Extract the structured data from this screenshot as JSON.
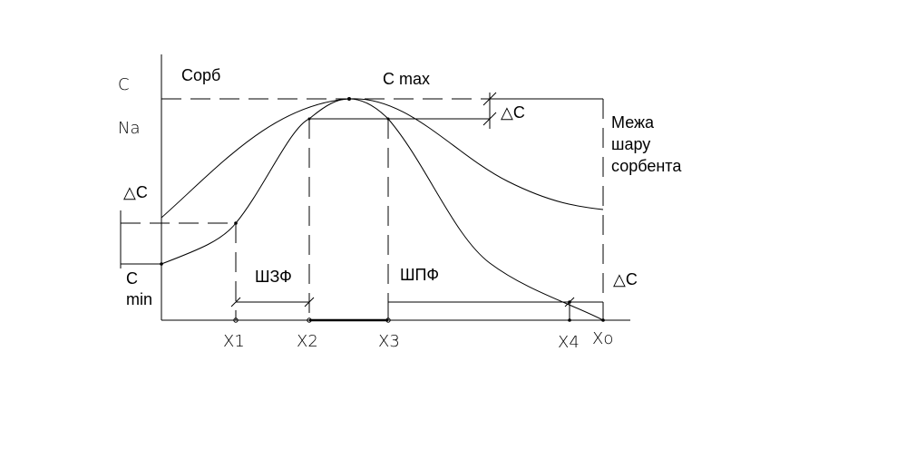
{
  "labels": {
    "c": "C",
    "na": "Na",
    "sorb": "Сорб",
    "c_max": "C max",
    "delta_c_top": "△C",
    "delta_c_left": "△C",
    "delta_c_right": "△C",
    "c_min": [
      "C",
      "min"
    ],
    "boundary": [
      "Межа",
      "шару",
      "сорбента"
    ],
    "shzf": "ШЗФ",
    "shpf": "ШПФ"
  },
  "x_labels": [
    "X1",
    "X2",
    "X3",
    "X4",
    "Xo"
  ]
}
